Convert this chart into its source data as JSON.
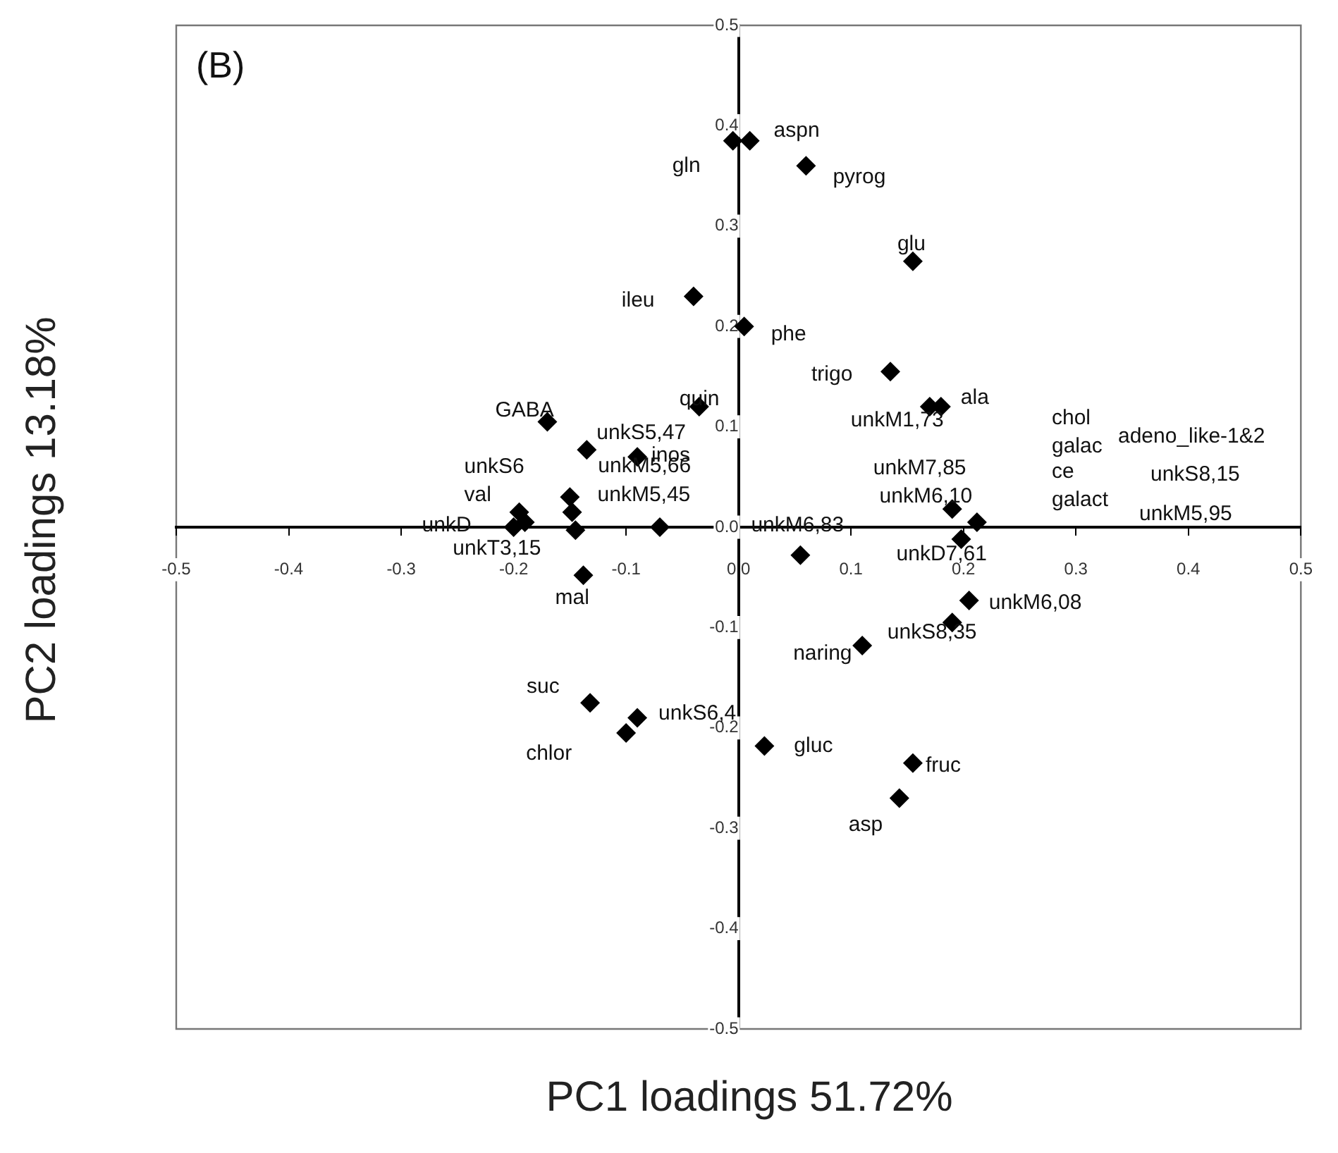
{
  "chart_data": {
    "type": "scatter",
    "xlabel": "PC1 loadings 51.72%",
    "ylabel": "PC2 loadings 13.18%",
    "x": [
      -0.005,
      0.01,
      0.06,
      0.155,
      -0.04,
      0.005,
      0.135,
      0.17,
      0.18,
      -0.17,
      -0.035,
      -0.135,
      -0.09,
      -0.15,
      -0.148,
      -0.195,
      -0.19,
      -0.2,
      -0.145,
      -0.138,
      -0.07,
      0.055,
      0.19,
      0.198,
      0.212,
      0.11,
      0.205,
      0.19,
      -0.132,
      -0.09,
      -0.1,
      0.023,
      0.155,
      0.143
    ],
    "values": [
      0.385,
      0.385,
      0.36,
      0.265,
      0.23,
      0.2,
      0.155,
      0.12,
      0.12,
      0.105,
      0.12,
      0.077,
      0.07,
      0.03,
      0.015,
      0.015,
      0.005,
      0.0,
      -0.003,
      -0.048,
      0.0,
      -0.028,
      0.018,
      -0.012,
      0.005,
      -0.118,
      -0.073,
      -0.095,
      -0.175,
      -0.19,
      -0.205,
      -0.218,
      -0.235,
      -0.27
    ],
    "color": "#000000",
    "marker": "diamond",
    "grid": false,
    "legend": false,
    "xlim": [
      -0.5,
      0.5
    ],
    "ylim": [
      -0.5,
      0.5
    ],
    "xticks": [
      -0.5,
      -0.4,
      -0.3,
      -0.2,
      -0.1,
      {
        "value": 0,
        "label": "0.0"
      },
      0.1,
      0.2,
      0.3,
      0.4,
      0.5
    ],
    "yticks": [
      -0.5,
      -0.4,
      -0.3,
      -0.2,
      -0.1,
      {
        "value": 0,
        "label": "0.0"
      },
      0.1,
      0.2,
      0.3,
      0.4,
      0.5
    ],
    "annotations": [
      "(B)",
      {
        "text": "aspn",
        "x": 0.01,
        "y": 0.385
      },
      {
        "text": "gln",
        "x": -0.005,
        "y": 0.385
      },
      {
        "text": "pyrog",
        "x": 0.06,
        "y": 0.36
      },
      {
        "text": "glu",
        "x": 0.155,
        "y": 0.265
      },
      {
        "text": "ileu",
        "x": -0.04,
        "y": 0.23
      },
      {
        "text": "phe",
        "x": 0.005,
        "y": 0.2
      },
      {
        "text": "trigo",
        "x": 0.135,
        "y": 0.155
      },
      {
        "text": "ala",
        "x": 0.18,
        "y": 0.12
      },
      {
        "text": "unkM1,73",
        "x": 0.17,
        "y": 0.12
      },
      "chol",
      "adeno_like-1&2",
      "galac",
      "unkS8,15",
      {
        "text": "unkM7,85",
        "x": 0.19,
        "y": 0.018
      },
      "ce",
      {
        "text": "unkM6,10",
        "x": 0.198,
        "y": -0.012
      },
      "galact",
      "unkM5,95",
      {
        "text": "unkM6,83",
        "x": 0.055,
        "y": -0.028
      },
      {
        "text": "unkD7,61",
        "x": 0.198,
        "y": -0.012
      },
      {
        "text": "unkM6,08",
        "x": 0.205,
        "y": -0.073
      },
      {
        "text": "unkS8,35",
        "x": 0.19,
        "y": -0.095
      },
      {
        "text": "naring",
        "x": 0.11,
        "y": -0.118
      },
      {
        "text": "GABA",
        "x": -0.17,
        "y": 0.105
      },
      {
        "text": "quin",
        "x": -0.035,
        "y": 0.12
      },
      {
        "text": "unkS5,47",
        "x": -0.135,
        "y": 0.077
      },
      {
        "text": "inos",
        "x": -0.09,
        "y": 0.07
      },
      {
        "text": "unkS6",
        "x": -0.195,
        "y": 0.015
      },
      {
        "text": "unkM5,66",
        "x": -0.15,
        "y": 0.03
      },
      {
        "text": "val",
        "x": -0.19,
        "y": 0.005
      },
      {
        "text": "unkM5,45",
        "x": -0.148,
        "y": 0.015
      },
      {
        "text": "unkD",
        "x": -0.2,
        "y": 0.0
      },
      {
        "text": "unkT3,15",
        "x": -0.145,
        "y": -0.003
      },
      {
        "text": "mal",
        "x": -0.138,
        "y": -0.048
      },
      {
        "text": "suc",
        "x": -0.132,
        "y": -0.175
      },
      {
        "text": "unkS6,4",
        "x": -0.09,
        "y": -0.19
      },
      {
        "text": "chlor",
        "x": -0.1,
        "y": -0.205
      },
      {
        "text": "gluc",
        "x": 0.023,
        "y": -0.218
      },
      {
        "text": "fruc",
        "x": 0.155,
        "y": -0.235
      },
      {
        "text": "asp",
        "x": 0.143,
        "y": -0.27
      }
    ]
  }
}
